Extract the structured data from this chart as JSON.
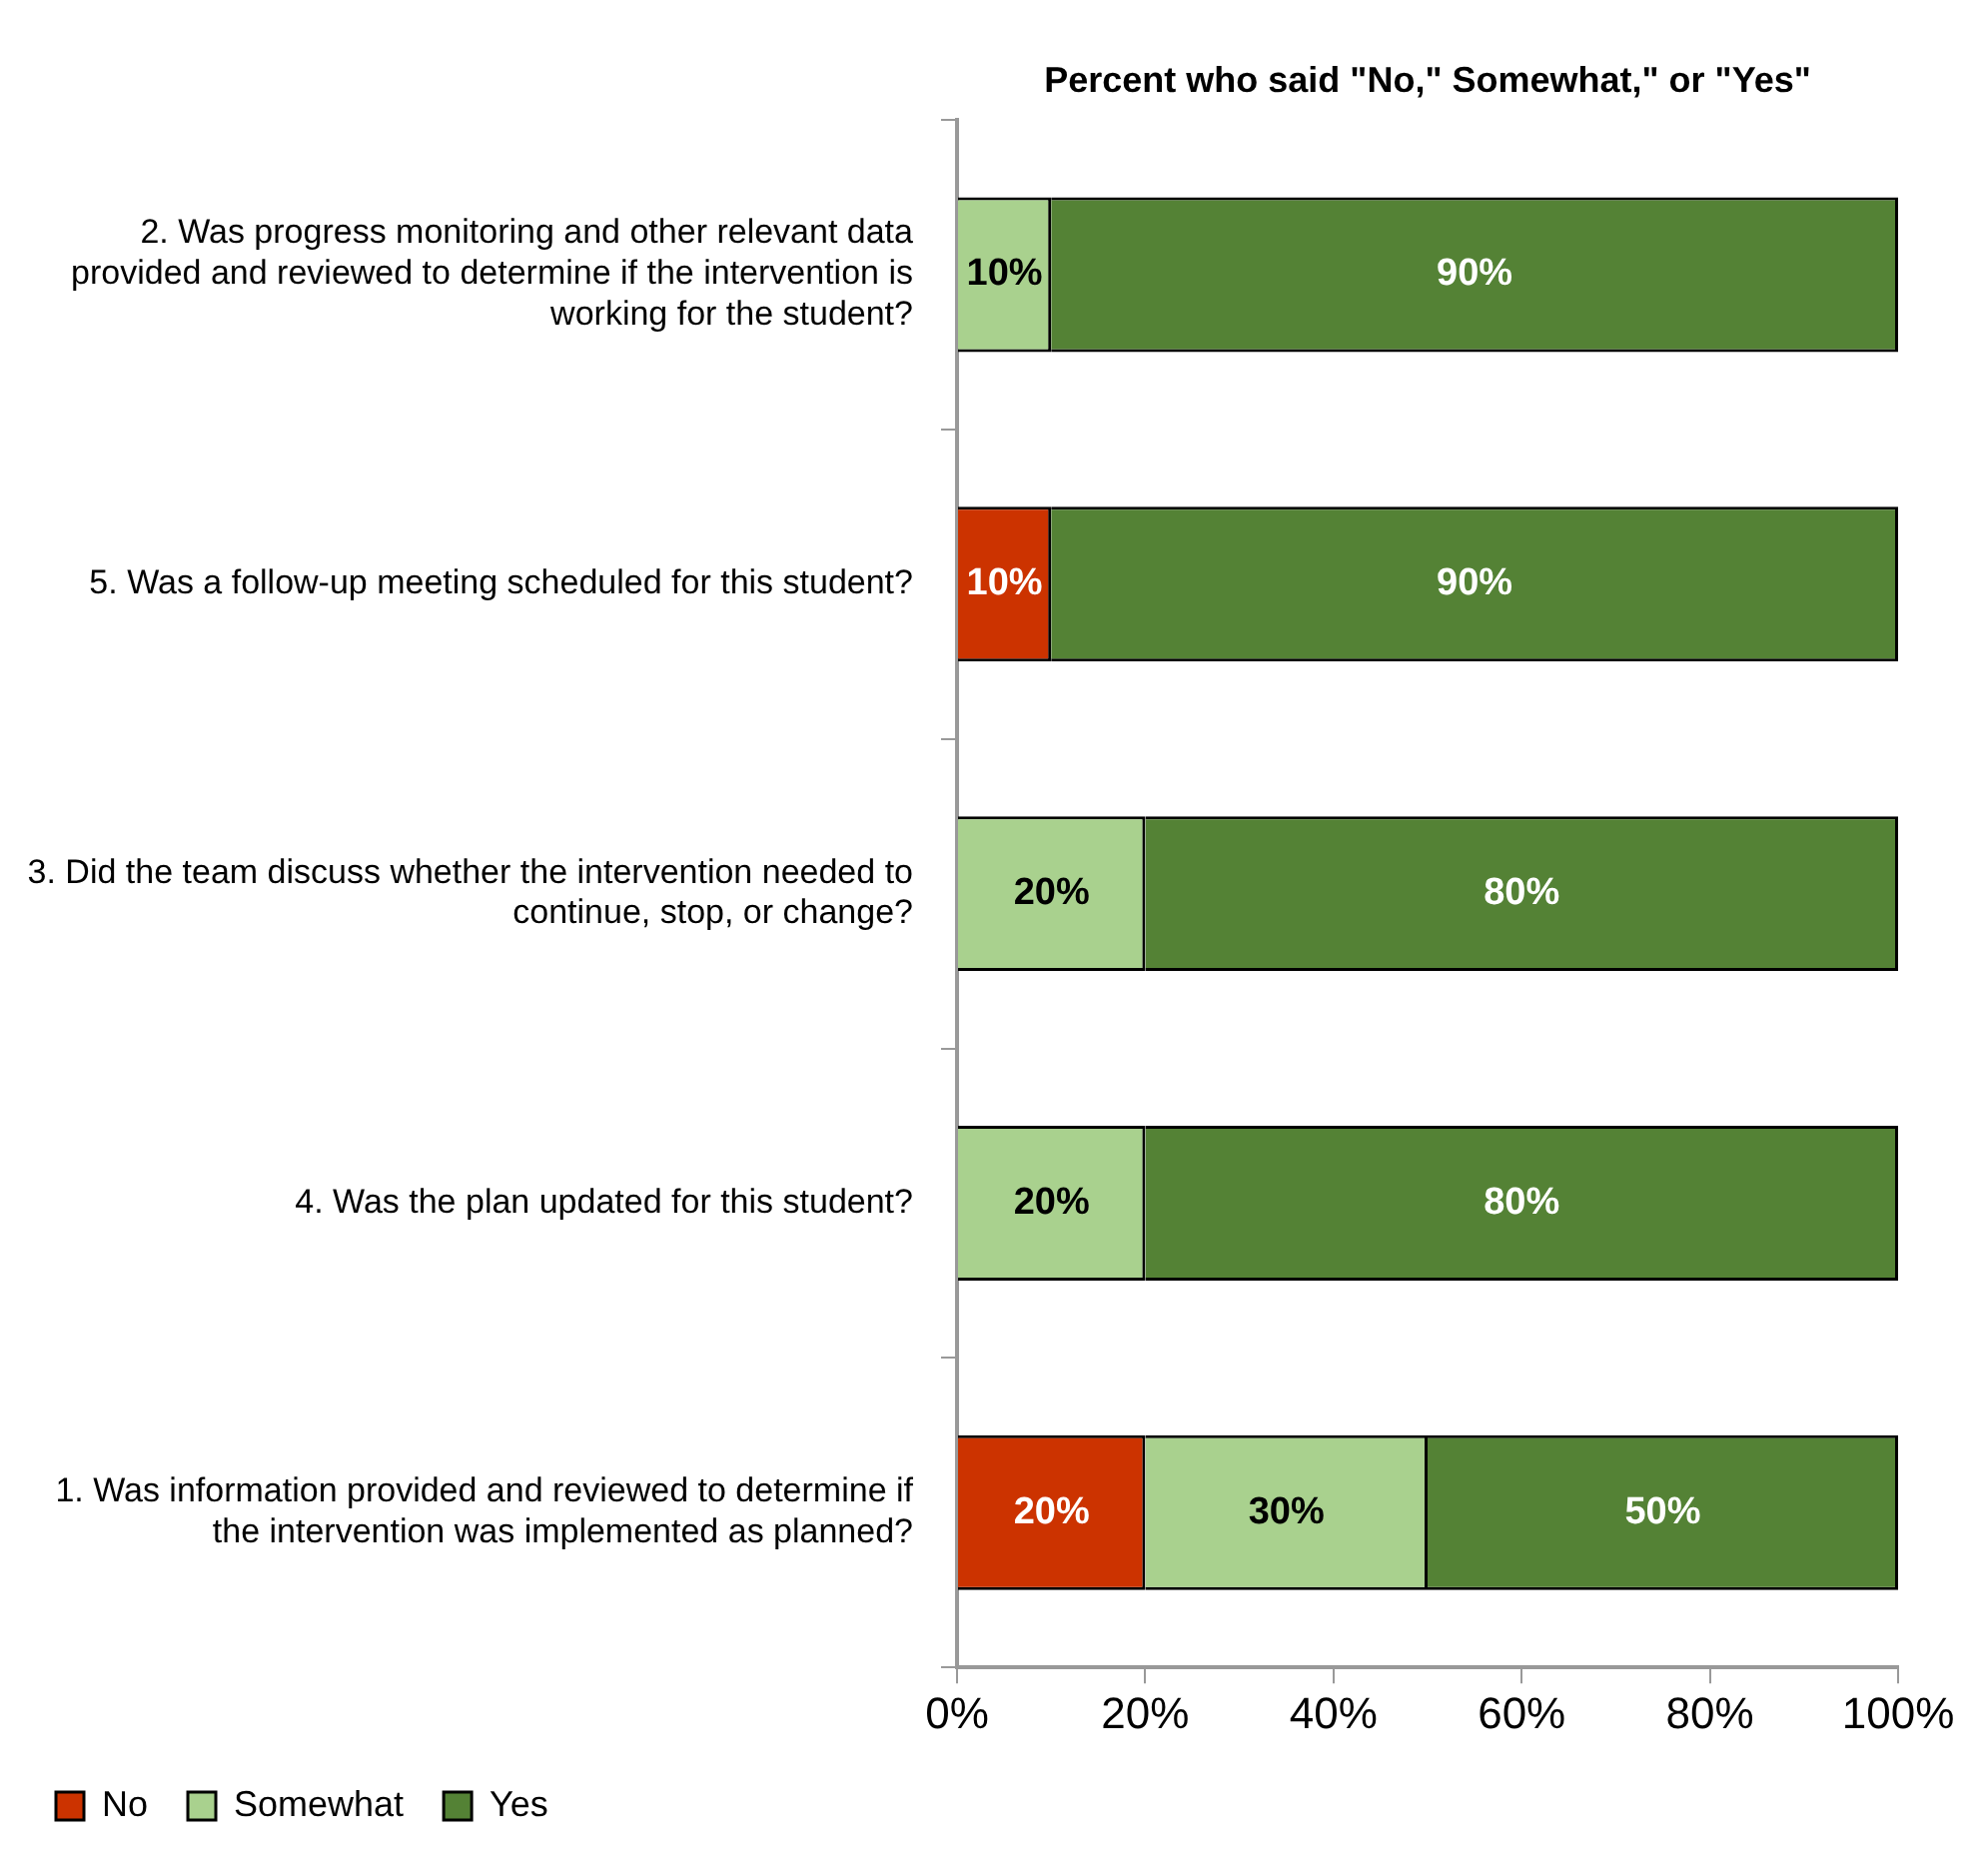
{
  "chart_data": {
    "type": "bar",
    "orientation": "horizontal",
    "stacked": true,
    "title": "Percent who said \"No,\" Somewhat,\" or \"Yes\"",
    "categories": [
      "2. Was progress monitoring and other relevant data provided and reviewed to determine if the intervention is working for the student?",
      "5. Was a follow-up meeting scheduled for this student?",
      "3. Did the team discuss whether the intervention needed to continue, stop, or change?",
      "4. Was the plan updated for this student?",
      "1. Was information provided and reviewed to determine if the intervention was implemented as planned?"
    ],
    "series": [
      {
        "name": "No",
        "color": "#cc3300",
        "values": [
          0,
          10,
          0,
          0,
          20
        ],
        "value_labels": [
          null,
          "10%",
          null,
          null,
          "20%"
        ]
      },
      {
        "name": "Somewhat",
        "color": "#a9d18e",
        "values": [
          10,
          0,
          20,
          20,
          30
        ],
        "value_labels": [
          "10%",
          null,
          "20%",
          "20%",
          "30%"
        ]
      },
      {
        "name": "Yes",
        "color": "#548235",
        "values": [
          90,
          90,
          80,
          80,
          50
        ],
        "value_labels": [
          "90%",
          "90%",
          "80%",
          "80%",
          "50%"
        ]
      }
    ],
    "xlim": [
      0,
      100
    ],
    "xticks": [
      {
        "value": 0,
        "label": "0%"
      },
      {
        "value": 20,
        "label": "20%"
      },
      {
        "value": 40,
        "label": "40%"
      },
      {
        "value": 60,
        "label": "60%"
      },
      {
        "value": 80,
        "label": "80%"
      },
      {
        "value": 100,
        "label": "100%"
      }
    ],
    "grid": false,
    "legend": "bottom"
  }
}
